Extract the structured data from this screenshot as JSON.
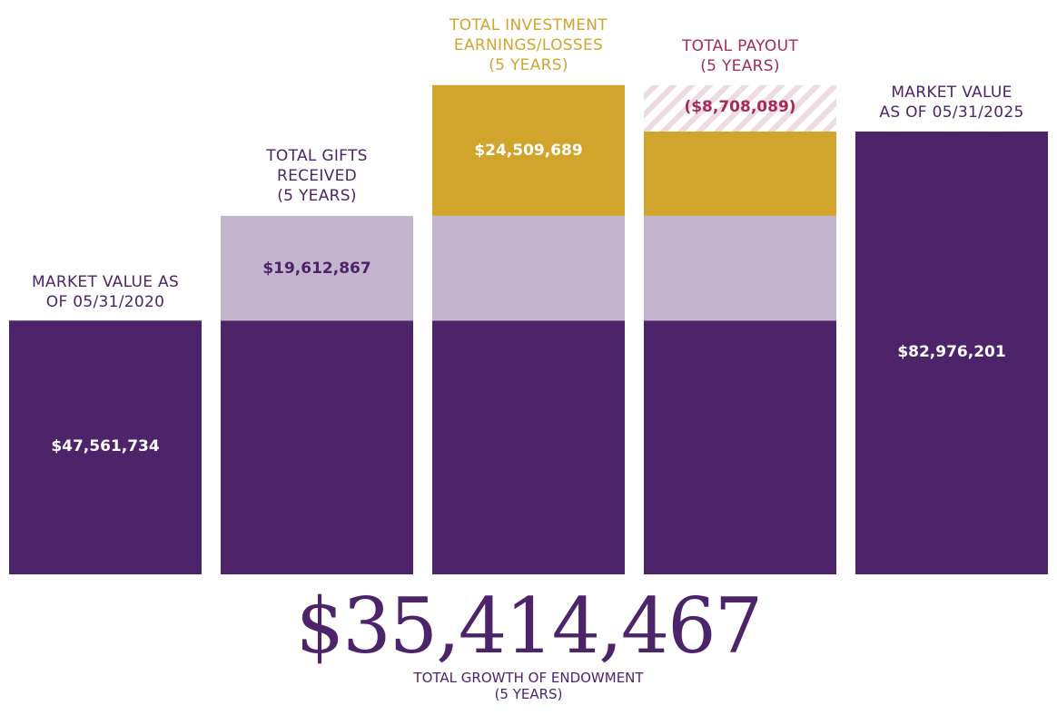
{
  "chart_data": {
    "type": "bar",
    "subtype": "waterfall",
    "title": "",
    "xlabel": "",
    "ylabel": "",
    "ylim": [
      0,
      82976201
    ],
    "grid": false,
    "categories": [
      "MARKET VALUE AS\nOF 05/31/2020",
      "TOTAL GIFTS\nRECEIVED\n(5 YEARS)",
      "TOTAL INVESTMENT\nEARNINGS/LOSSES\n(5 YEARS)",
      "TOTAL PAYOUT\n(5 YEARS)",
      "MARKET VALUE\nAS OF 05/31/2025"
    ],
    "values": [
      47561734,
      19612867,
      24509689,
      -8708089,
      82976201
    ],
    "value_labels": [
      "$47,561,734",
      "$19,612,867",
      "$24,509,689",
      "($8,708,089)",
      "$82,976,201"
    ],
    "segments": {
      "base": 47561734,
      "gifts": 19612867,
      "earnings": 24509689,
      "payout": -8708089,
      "end": 82976201
    },
    "colors": {
      "market_value": "#4d2469",
      "gifts": "#c4b5cf",
      "earnings": "#d1a42c",
      "payout_stripe": "#ecdbe1",
      "label_purple": "#4d2469",
      "label_gold": "#d1a42c",
      "label_payout": "#a52b5a",
      "value_light": "#ffffff"
    }
  },
  "summary": {
    "total_growth_value": "$35,414,467",
    "total_growth_caption": "TOTAL GROWTH OF ENDOWMENT\n(5 YEARS)"
  }
}
